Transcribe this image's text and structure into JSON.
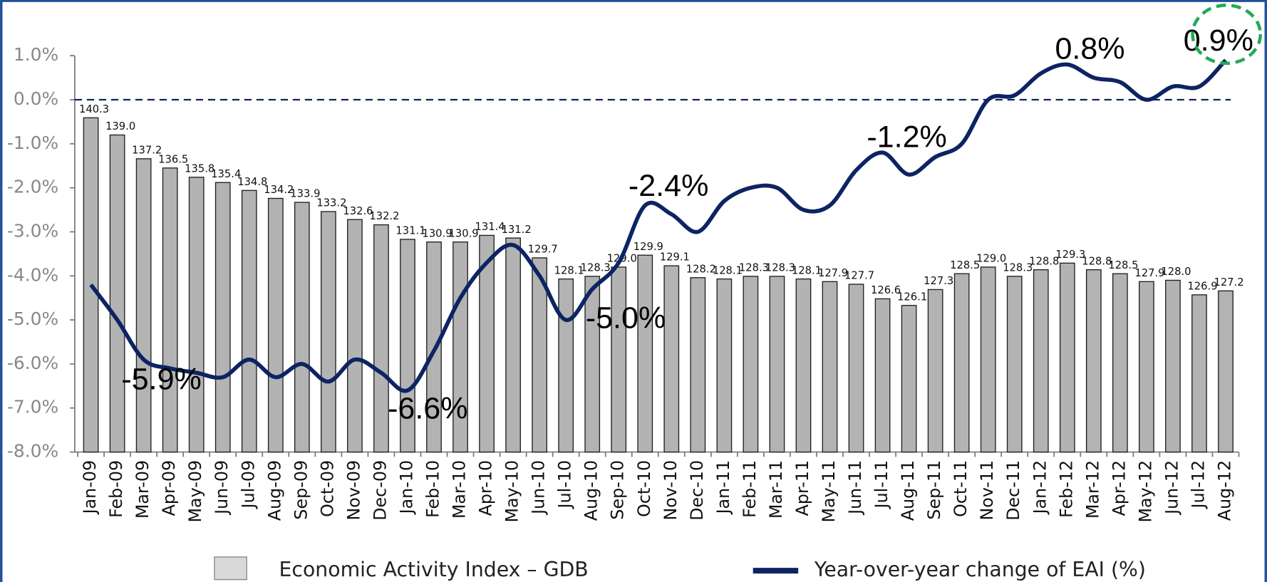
{
  "chart_data": {
    "type": "combo",
    "categories": [
      "Jan-09",
      "Feb-09",
      "Mar-09",
      "Apr-09",
      "May-09",
      "Jun-09",
      "Jul-09",
      "Aug-09",
      "Sep-09",
      "Oct-09",
      "Nov-09",
      "Dec-09",
      "Jan-10",
      "Feb-10",
      "Mar-10",
      "Apr-10",
      "May-10",
      "Jun-10",
      "Jul-10",
      "Aug-10",
      "Sep-10",
      "Oct-10",
      "Nov-10",
      "Dec-10",
      "Jan-11",
      "Feb-11",
      "Mar-11",
      "Apr-11",
      "May-11",
      "Jun-11",
      "Jul-11",
      "Aug-11",
      "Sep-11",
      "Oct-11",
      "Nov-11",
      "Dec-11",
      "Jan-12",
      "Feb-12",
      "Mar-12",
      "Apr-12",
      "May-12",
      "Jun-12",
      "Jul-12",
      "Aug-12"
    ],
    "ylim": [
      -8,
      1
    ],
    "yticks": [
      {
        "value": 1,
        "label": "1.0%"
      },
      {
        "value": 0,
        "label": "0.0%"
      },
      {
        "value": -1,
        "label": "-1.0%"
      },
      {
        "value": -2,
        "label": "-2.0%"
      },
      {
        "value": -3,
        "label": "-3.0%"
      },
      {
        "value": -4,
        "label": "-4.0%"
      },
      {
        "value": -5,
        "label": "-5.0%"
      },
      {
        "value": -6,
        "label": "-6.0%"
      },
      {
        "value": -7,
        "label": "-7.0%"
      },
      {
        "value": -8,
        "label": "-8.0%"
      }
    ],
    "y2lim": [
      115,
      145
    ],
    "zero_line": true,
    "legend": "bottom",
    "series": [
      {
        "name": "Economic Activity Index – GDB",
        "type": "bar",
        "axis": "y2",
        "color": "#b3b3b3",
        "values": [
          140.3,
          139.0,
          137.2,
          136.5,
          135.8,
          135.4,
          134.8,
          134.2,
          133.9,
          133.2,
          132.6,
          132.2,
          131.1,
          130.9,
          130.9,
          131.4,
          131.2,
          129.7,
          128.1,
          128.3,
          129.0,
          129.9,
          129.1,
          128.2,
          128.1,
          128.3,
          128.3,
          128.1,
          127.9,
          127.7,
          126.6,
          126.1,
          127.3,
          128.5,
          129.0,
          128.3,
          128.8,
          129.3,
          128.8,
          128.5,
          127.9,
          128.0,
          126.9,
          127.2
        ],
        "value_labels": [
          "140.3",
          "139.0",
          "137.2",
          "136.5",
          "135.8",
          "135.4",
          "134.8",
          "134.2",
          "133.9",
          "133.2",
          "132.6",
          "132.2",
          "131.1",
          "130.9",
          "130.9",
          "131.4",
          "131.2",
          "129.7",
          "128.1",
          "128.3",
          "129.0",
          "129.9",
          "129.1",
          "128.2",
          "128.1",
          "128.3",
          "128.3",
          "128.1",
          "127.9",
          "127.7",
          "126.6",
          "126.1",
          "127.3",
          "128.5",
          "129.0",
          "128.3",
          "128.8",
          "129.3",
          "128.8",
          "128.5",
          "127.9",
          "128.0",
          "126.9",
          "127.2"
        ]
      },
      {
        "name": "Year-over-year change of EAI (%)",
        "type": "line",
        "color": "#0d2463",
        "values": [
          -4.2,
          -5.0,
          -5.9,
          -6.1,
          -6.2,
          -6.3,
          -5.9,
          -6.3,
          -6.0,
          -6.4,
          -5.9,
          -6.2,
          -6.6,
          -5.7,
          -4.5,
          -3.7,
          -3.3,
          -4.0,
          -5.0,
          -4.3,
          -3.7,
          -2.4,
          -2.6,
          -3.0,
          -2.3,
          -2.0,
          -2.0,
          -2.5,
          -2.4,
          -1.6,
          -1.2,
          -1.7,
          -1.3,
          -1.0,
          0.0,
          0.1,
          0.6,
          0.8,
          0.5,
          0.4,
          0.0,
          0.3,
          0.3,
          0.9
        ],
        "value_labels": [
          null,
          null,
          "-5.9%",
          null,
          null,
          null,
          null,
          null,
          null,
          null,
          null,
          null,
          "-6.6%",
          null,
          null,
          null,
          null,
          null,
          "-5.0%",
          null,
          null,
          "-2.4%",
          null,
          null,
          null,
          null,
          null,
          null,
          null,
          null,
          "-1.2%",
          null,
          null,
          null,
          null,
          null,
          null,
          "0.8%",
          null,
          null,
          null,
          null,
          null,
          "0.9%"
        ]
      }
    ]
  }
}
